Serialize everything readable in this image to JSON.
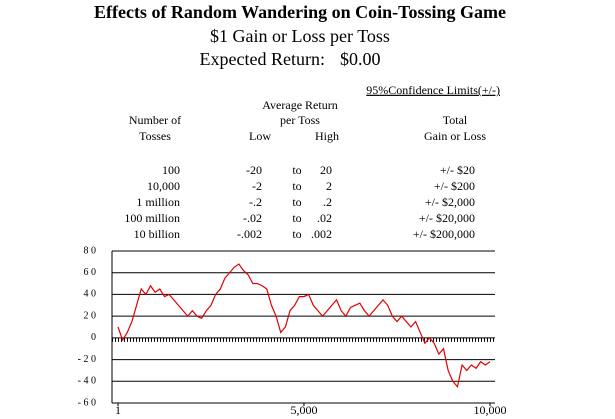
{
  "header": {
    "title": "Effects of Random Wandering on Coin-Tossing Game",
    "subtitle": "$1 Gain or Loss per Toss",
    "expected_label": "Expected Return:",
    "expected_value": "$0.00"
  },
  "table": {
    "confidence_label": "95%Confidence Limits(+/-)",
    "columns": {
      "tosses": [
        "Number of",
        "Tosses"
      ],
      "average": [
        "Average Return",
        "per Toss"
      ],
      "low": "Low",
      "high": "High",
      "total": [
        "Total",
        "Gain or Loss"
      ]
    },
    "rows": [
      [
        "100",
        "-20",
        "to",
        "20",
        "+/- $20"
      ],
      [
        "10,000",
        "-2",
        "to",
        "2",
        "+/- $200"
      ],
      [
        "1 million",
        "-.2",
        "to",
        ".2",
        "+/- $2,000"
      ],
      [
        "100 million",
        "-.02",
        "to",
        ".02",
        "+/- $20,000"
      ],
      [
        "10 billion",
        "-.002",
        "to",
        ".002",
        "+/- $200,000"
      ]
    ]
  },
  "chart_data": {
    "type": "line",
    "x": [
      1,
      125,
      250,
      375,
      500,
      625,
      750,
      875,
      1000,
      1125,
      1250,
      1375,
      1500,
      1625,
      1750,
      1875,
      2000,
      2125,
      2250,
      2375,
      2500,
      2625,
      2750,
      2875,
      3000,
      3125,
      3250,
      3375,
      3500,
      3625,
      3750,
      3875,
      4000,
      4125,
      4250,
      4375,
      4500,
      4625,
      4750,
      4875,
      5000,
      5125,
      5250,
      5375,
      5500,
      5625,
      5750,
      5875,
      6000,
      6125,
      6250,
      6375,
      6500,
      6625,
      6750,
      6875,
      7000,
      7125,
      7250,
      7375,
      7500,
      7625,
      7750,
      7875,
      8000,
      8125,
      8250,
      8375,
      8500,
      8625,
      8750,
      8875,
      9000,
      9125,
      9250,
      9375,
      9500,
      9625,
      9750,
      9875,
      10000
    ],
    "values": [
      10,
      -2,
      5,
      15,
      30,
      45,
      40,
      48,
      42,
      45,
      38,
      40,
      35,
      30,
      25,
      20,
      25,
      20,
      18,
      25,
      30,
      40,
      45,
      55,
      60,
      65,
      68,
      62,
      58,
      50,
      50,
      48,
      45,
      30,
      20,
      5,
      10,
      25,
      30,
      38,
      38,
      40,
      30,
      25,
      20,
      25,
      30,
      35,
      25,
      20,
      28,
      30,
      32,
      25,
      20,
      25,
      30,
      35,
      30,
      20,
      15,
      20,
      15,
      10,
      15,
      5,
      -5,
      0,
      -5,
      -15,
      -10,
      -30,
      -40,
      -45,
      -25,
      -30,
      -25,
      -28,
      -22,
      -25,
      -22
    ],
    "color": "#e00000",
    "xlim": [
      1,
      10000
    ],
    "xticks": [
      1,
      {
        "value": 5000,
        "label": "5,000"
      },
      {
        "value": 10000,
        "label": "10,000"
      }
    ],
    "ylim": [
      -60,
      80
    ],
    "yticks": [
      {
        "value": 80,
        "label": "8 0"
      },
      {
        "value": 60,
        "label": "6 0"
      },
      {
        "value": 40,
        "label": "4 0"
      },
      {
        "value": 20,
        "label": "2 0"
      },
      0,
      {
        "value": -20,
        "label": "- 2 0"
      },
      {
        "value": -40,
        "label": "- 4 0"
      },
      {
        "value": -60,
        "label": "- 6 0"
      }
    ],
    "grid": true
  }
}
